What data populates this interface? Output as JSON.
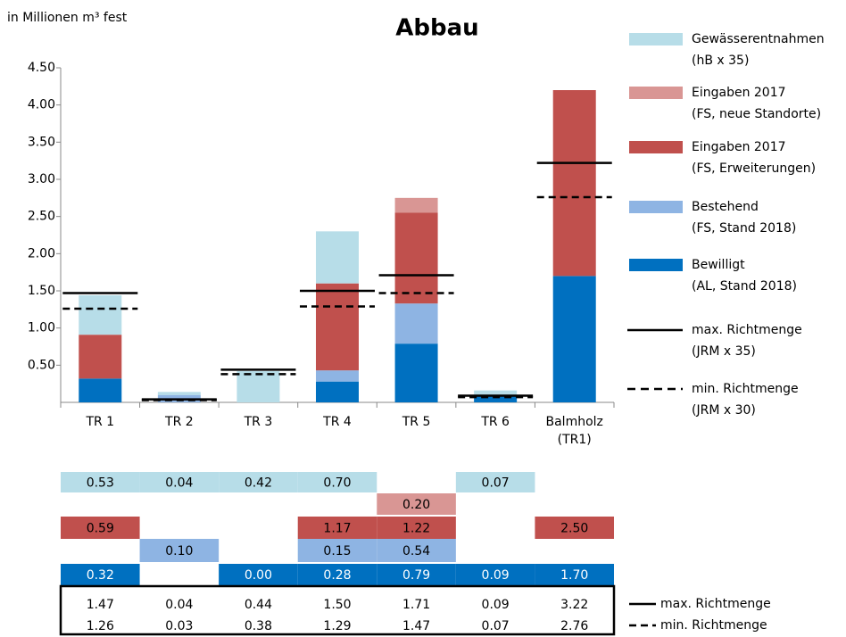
{
  "chart_data": {
    "type": "stacked_bar",
    "title": "Abbau",
    "y_label": "in Millionen m³ fest",
    "categories": [
      "TR 1",
      "TR 2",
      "TR 3",
      "TR 4",
      "TR 5",
      "TR 6",
      "Balmholz (TR1)"
    ],
    "ylim": [
      0,
      4.5
    ],
    "yticks": [
      {
        "value": 0.5,
        "label": "0.50"
      },
      {
        "value": 1.0,
        "label": "1.00"
      },
      {
        "value": 1.5,
        "label": "1.50"
      },
      {
        "value": 2.0,
        "label": "2.00"
      },
      {
        "value": 2.5,
        "label": "2.50"
      },
      {
        "value": 3.0,
        "label": "3.00"
      },
      {
        "value": 3.5,
        "label": "3.50"
      },
      {
        "value": 4.0,
        "label": "4.00"
      },
      {
        "value": 4.5,
        "label": "4.50"
      }
    ],
    "series": [
      {
        "name": "Gewässerentnahmen",
        "detail": "(hB x 35)",
        "color": "#b7dde8",
        "kind": "bar",
        "values": [
          0.53,
          0.04,
          0.42,
          0.7,
          null,
          0.07,
          null
        ],
        "value_labels": [
          "0.53",
          "0.04",
          "0.42",
          "0.70",
          null,
          "0.07",
          null
        ]
      },
      {
        "name": "Eingaben 2017",
        "detail": "(FS, neue Standorte)",
        "color": "#d99694",
        "kind": "bar",
        "values": [
          null,
          null,
          null,
          null,
          0.2,
          null,
          null
        ],
        "value_labels": [
          null,
          null,
          null,
          null,
          "0.20",
          null,
          null
        ]
      },
      {
        "name": "Eingaben 2017",
        "detail": "(FS, Erweiterungen)",
        "color": "#c0504d",
        "kind": "bar",
        "values": [
          0.59,
          null,
          null,
          1.17,
          1.22,
          null,
          2.5
        ],
        "value_labels": [
          "0.59",
          null,
          null,
          "1.17",
          "1.22",
          null,
          "2.50"
        ]
      },
      {
        "name": "Bestehend",
        "detail": "(FS, Stand 2018)",
        "color": "#8eb4e3",
        "kind": "bar",
        "values": [
          null,
          0.1,
          null,
          0.15,
          0.54,
          null,
          null
        ],
        "value_labels": [
          null,
          "0.10",
          null,
          "0.15",
          "0.54",
          null,
          null
        ]
      },
      {
        "name": "Bewilligt",
        "detail": "(AL, Stand 2018)",
        "color": "#0070c0",
        "kind": "bar",
        "values": [
          0.32,
          null,
          0.0,
          0.28,
          0.79,
          0.09,
          1.7
        ],
        "value_labels": [
          "0.32",
          null,
          "0.00",
          "0.28",
          "0.79",
          "0.09",
          "1.70"
        ]
      },
      {
        "name": "max. Richtmenge",
        "detail": "(JRM x 35)",
        "color": "#000000",
        "kind": "line",
        "dash": false,
        "values": [
          1.47,
          0.04,
          0.44,
          1.5,
          1.71,
          0.09,
          3.22
        ],
        "value_labels": [
          "1.47",
          "0.04",
          "0.44",
          "1.50",
          "1.71",
          "0.09",
          "3.22"
        ]
      },
      {
        "name": "min. Richtmenge",
        "detail": "(JRM x 30)",
        "color": "#000000",
        "kind": "line",
        "dash": true,
        "values": [
          1.26,
          0.03,
          0.38,
          1.29,
          1.47,
          0.07,
          2.76
        ],
        "value_labels": [
          "1.26",
          "0.03",
          "0.38",
          "1.29",
          "1.47",
          "0.07",
          "2.76"
        ]
      }
    ]
  }
}
